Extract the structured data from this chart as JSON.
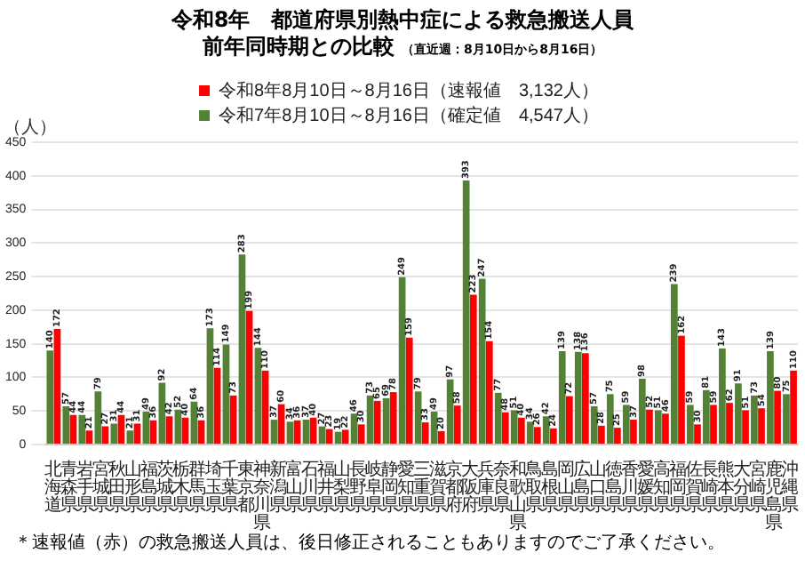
{
  "chart_data": {
    "type": "bar",
    "title": "令和8年　都道府県別熱中症による救急搬送人員前年同時期との比較",
    "subtitle": "（直近週：8月10日から8月16日）",
    "ylabel": "（人）",
    "categories": [
      "北海道",
      "青森県",
      "岩手県",
      "宮城県",
      "秋田県",
      "山形県",
      "福島県",
      "茨城県",
      "栃木県",
      "群馬県",
      "埼玉県",
      "千葉県",
      "東京都",
      "神奈川県",
      "新潟県",
      "富山県",
      "石川県",
      "福井県",
      "山梨県",
      "長野県",
      "岐阜県",
      "静岡県",
      "愛知県",
      "三重県",
      "滋賀県",
      "京都府",
      "大阪府",
      "兵庫県",
      "奈良県",
      "和歌山県",
      "鳥取県",
      "島根県",
      "岡山県",
      "広島県",
      "山口県",
      "徳島県",
      "香川県",
      "愛媛県",
      "高知県",
      "福岡県",
      "佐賀県",
      "長崎県",
      "熊本県",
      "大分県",
      "宮崎県",
      "鹿児島県",
      "沖縄県"
    ],
    "series": [
      {
        "name": "令和7年8月10日～8月16日（確定値　4,547人）",
        "color": "#548235",
        "values": [
          140,
          57,
          44,
          79,
          31,
          21,
          49,
          92,
          52,
          64,
          173,
          149,
          283,
          144,
          37,
          34,
          37,
          27,
          19,
          46,
          73,
          69,
          249,
          79,
          49,
          97,
          393,
          247,
          77,
          51,
          34,
          42,
          139,
          138,
          57,
          75,
          59,
          98,
          51,
          239,
          59,
          81,
          143,
          91,
          73,
          139,
          75
        ]
      },
      {
        "name": "令和8年8月10日～8月16日（速報値　3,132人）",
        "color": "#ff0000",
        "values": [
          172,
          44,
          21,
          27,
          44,
          31,
          36,
          42,
          40,
          36,
          114,
          73,
          199,
          110,
          60,
          36,
          40,
          23,
          22,
          30,
          65,
          78,
          159,
          33,
          20,
          58,
          223,
          154,
          48,
          40,
          26,
          24,
          72,
          136,
          28,
          25,
          37,
          52,
          46,
          162,
          30,
          59,
          62,
          51,
          54,
          80,
          110
        ]
      }
    ],
    "ylim": [
      0,
      450
    ],
    "yticks": [
      0,
      50,
      100,
      150,
      200,
      250,
      300,
      350,
      400,
      450
    ],
    "grid": "y",
    "legend": "top",
    "data_labels": true,
    "annotations": [
      "＊速報値（赤）の救急搬送人員は、後日修正されることもありますのでご了承ください。"
    ]
  }
}
